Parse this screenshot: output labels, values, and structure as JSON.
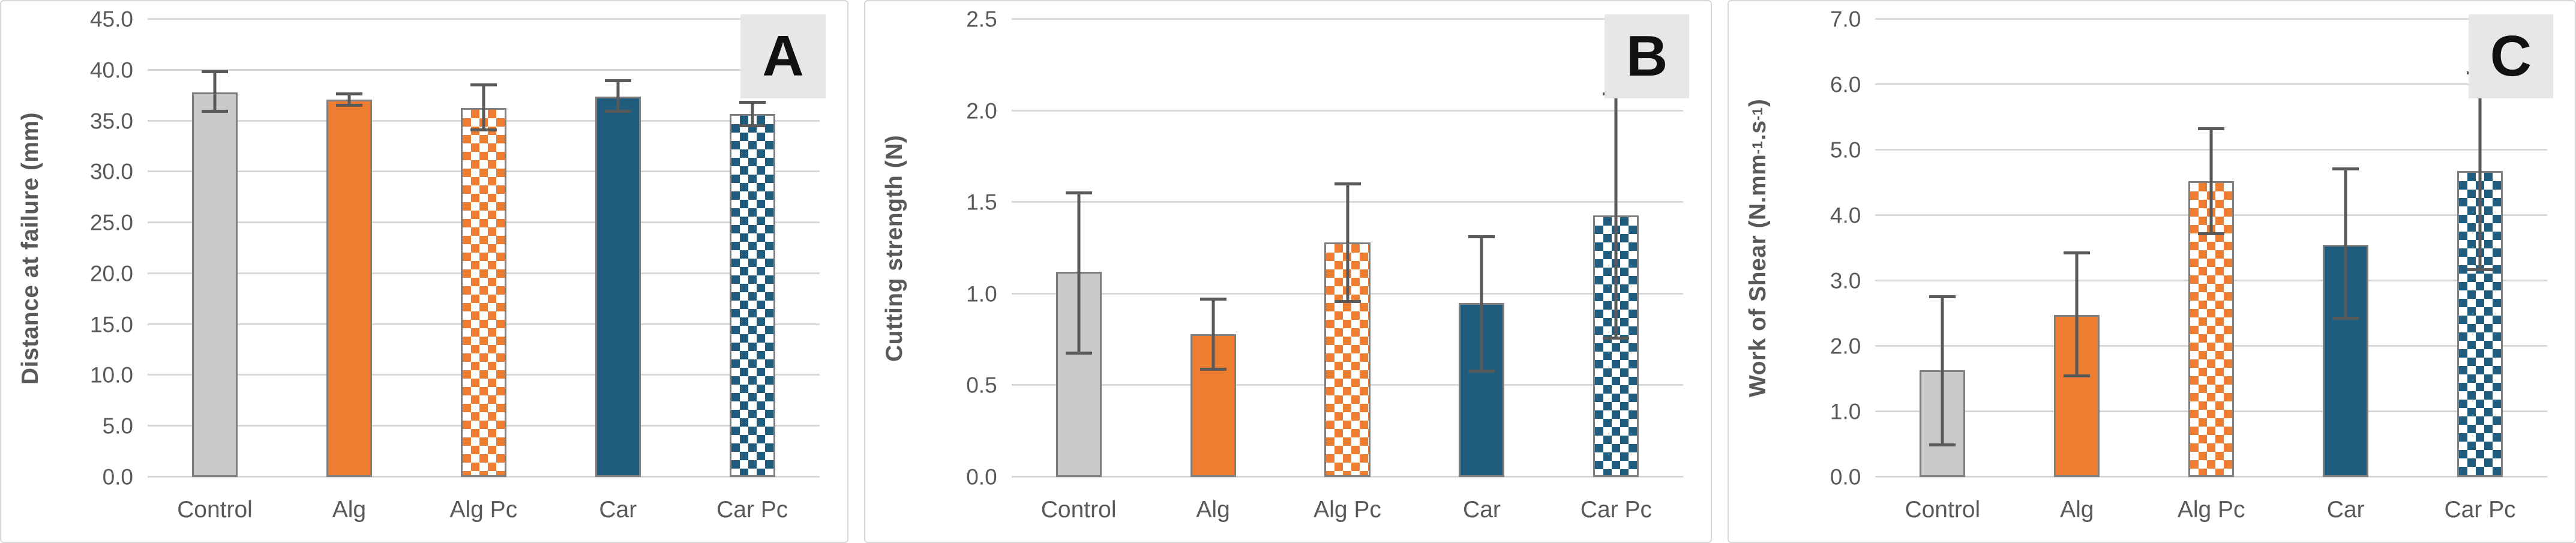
{
  "figure": {
    "description": "Three-panel bar chart figure comparing Control, Alg, Alg Pc, Car and Car Pc samples",
    "panel_letters": [
      "A",
      "B",
      "C"
    ]
  },
  "style": {
    "colors": {
      "gray_fill": "#c9c9c9",
      "orange_fill": "#ed7d31",
      "blue_fill": "#1f5c7e",
      "bar_border": "#7f7f7f",
      "grid": "#d9d9d9",
      "text": "#595959",
      "error": "#595959",
      "panel_label_bg": "#e8e7e7",
      "panel_border": "#d9d9d9",
      "background": "#ffffff"
    }
  },
  "chart_data": [
    {
      "type": "bar",
      "panel_label": "A",
      "title": "",
      "xlabel": "",
      "ylabel": "Distance at failure (mm)",
      "categories": [
        "Control",
        "Alg",
        "Alg Pc",
        "Car",
        "Car Pc"
      ],
      "values": [
        37.8,
        37.1,
        36.3,
        37.4,
        35.7
      ],
      "error_low": [
        35.8,
        36.4,
        34.0,
        35.8,
        34.4
      ],
      "error_high": [
        40.0,
        37.8,
        38.7,
        39.1,
        37.0
      ],
      "ylim": [
        0,
        45
      ],
      "ytick_step": 5,
      "tick_decimals": 1,
      "grid": true,
      "legend": "none",
      "bar_styles": [
        "solid-gray",
        "solid-orange",
        "checker-orange",
        "solid-blue",
        "checker-blue"
      ]
    },
    {
      "type": "bar",
      "panel_label": "B",
      "title": "",
      "xlabel": "",
      "ylabel": "Cutting strength (N)",
      "categories": [
        "Control",
        "Alg",
        "Alg Pc",
        "Car",
        "Car Pc"
      ],
      "values": [
        1.12,
        0.78,
        1.28,
        0.95,
        1.43
      ],
      "error_low": [
        0.67,
        0.58,
        0.95,
        0.57,
        0.75
      ],
      "error_high": [
        1.56,
        0.98,
        1.61,
        1.32,
        2.1
      ],
      "ylim": [
        0,
        2.5
      ],
      "ytick_step": 0.5,
      "tick_decimals": 1,
      "grid": true,
      "legend": "none",
      "bar_styles": [
        "solid-gray",
        "solid-orange",
        "checker-orange",
        "solid-blue",
        "checker-blue"
      ]
    },
    {
      "type": "bar",
      "panel_label": "C",
      "title": "",
      "xlabel": "",
      "ylabel": "Work of Shear  (N.mm⁻¹.s⁻¹)",
      "categories": [
        "Control",
        "Alg",
        "Alg Pc",
        "Car",
        "Car Pc"
      ],
      "values": [
        1.63,
        2.48,
        4.52,
        3.55,
        4.68
      ],
      "error_low": [
        0.47,
        1.52,
        3.7,
        2.4,
        3.15
      ],
      "error_high": [
        2.78,
        3.45,
        5.35,
        4.73,
        6.2
      ],
      "ylim": [
        0,
        7
      ],
      "ytick_step": 1,
      "tick_decimals": 1,
      "grid": true,
      "legend": "none",
      "bar_styles": [
        "solid-gray",
        "solid-orange",
        "checker-orange",
        "solid-blue",
        "checker-blue"
      ]
    }
  ]
}
